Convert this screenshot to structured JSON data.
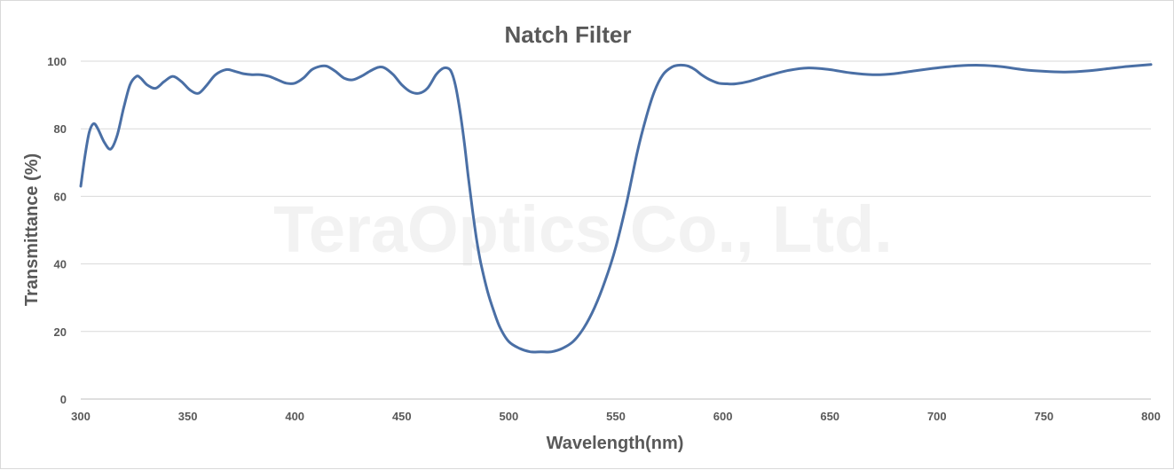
{
  "chart_data": {
    "type": "line",
    "title": "Natch Filter",
    "xlabel": "Wavelength(nm)",
    "ylabel": "Transmittance (%)",
    "xlim": [
      300,
      800
    ],
    "ylim": [
      0,
      100
    ],
    "x_ticks": [
      300,
      350,
      400,
      450,
      500,
      550,
      600,
      650,
      700,
      750,
      800
    ],
    "y_ticks": [
      0,
      20,
      40,
      60,
      80,
      100
    ],
    "grid": true,
    "legend": "none",
    "watermark": "TeraOptics Co., Ltd.",
    "series_color": "#4a6fa5",
    "series": [
      {
        "x": [
          300,
          302,
          304,
          306,
          308,
          311,
          314,
          317,
          320,
          323,
          326,
          328,
          331,
          335,
          339,
          343,
          347,
          351,
          355,
          359,
          363,
          368,
          372,
          376,
          380,
          384,
          388,
          392,
          396,
          400,
          404,
          408,
          412,
          415,
          419,
          423,
          427,
          431,
          435,
          439,
          442,
          446,
          450,
          454,
          458,
          462,
          466,
          469,
          471,
          473,
          475,
          477,
          479,
          481,
          483,
          485,
          487,
          490,
          493,
          496,
          500,
          505,
          510,
          515,
          520,
          525,
          530,
          535,
          540,
          545,
          550,
          555,
          560,
          564,
          568,
          572,
          576,
          579,
          582,
          584,
          587,
          590,
          594,
          598,
          602,
          606,
          612,
          620,
          630,
          640,
          650,
          660,
          670,
          680,
          690,
          700,
          710,
          720,
          730,
          740,
          750,
          760,
          770,
          780,
          790,
          800
        ],
        "y": [
          63,
          72,
          79,
          81.5,
          80,
          76,
          74,
          78,
          86,
          93,
          95.5,
          95,
          93,
          92,
          94,
          95.5,
          94,
          91.5,
          90.5,
          93,
          96,
          97.5,
          97,
          96.3,
          96,
          96,
          95.5,
          94.5,
          93.5,
          93.5,
          95,
          97.5,
          98.5,
          98.5,
          97,
          95,
          94.5,
          95.5,
          97,
          98.2,
          98,
          96,
          93,
          91,
          90.5,
          92,
          96,
          97.8,
          98,
          97,
          93,
          86,
          77,
          66,
          56,
          47,
          40,
          32,
          26,
          21,
          17,
          15,
          14,
          14,
          14,
          15,
          17,
          21,
          27,
          35,
          45,
          58,
          73,
          83,
          91,
          96,
          98.2,
          98.8,
          98.8,
          98.5,
          97.5,
          96,
          94.5,
          93.5,
          93.3,
          93.3,
          94,
          95.5,
          97.2,
          98,
          97.5,
          96.5,
          96,
          96.3,
          97.2,
          98,
          98.6,
          98.8,
          98.4,
          97.5,
          97,
          96.8,
          97.1,
          97.8,
          98.5,
          99
        ]
      }
    ]
  }
}
